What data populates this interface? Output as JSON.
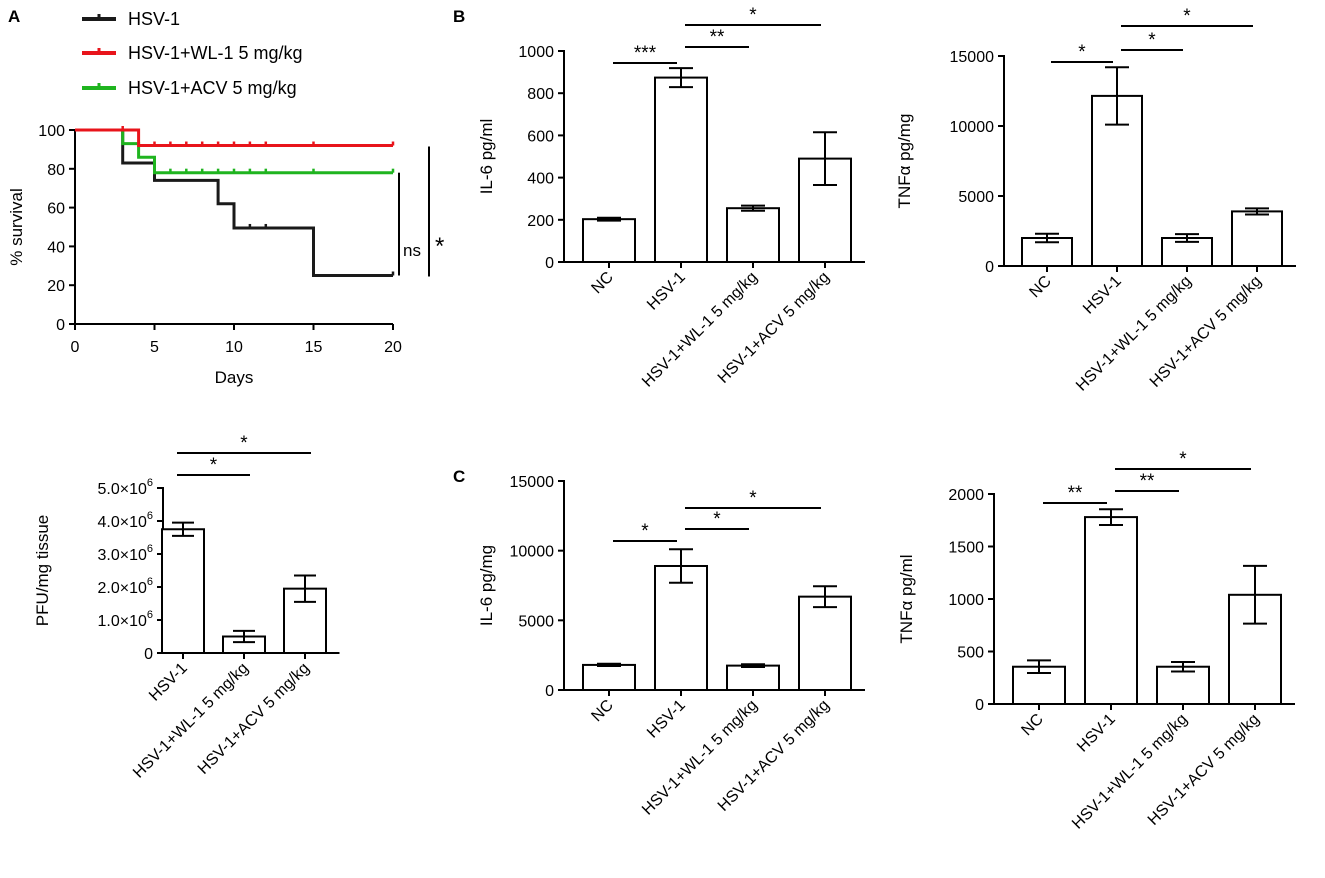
{
  "panel_labels": [
    "A",
    "B",
    "C"
  ],
  "colors": {
    "HSV-1": "#1a1a1a",
    "HSV-1+WL-1 5 mg/kg": "#e8141b",
    "HSV-1+ACV 5 mg/kg": "#1fb41f"
  },
  "chart_data": [
    {
      "id": "survival",
      "type": "line",
      "panel": "A",
      "xlabel": "Days",
      "ylabel": "% survival",
      "xlim": [
        0,
        20
      ],
      "ylim": [
        0,
        100
      ],
      "xticks": [
        0,
        5,
        10,
        15,
        20
      ],
      "yticks": [
        0,
        20,
        40,
        60,
        80,
        100
      ],
      "series": [
        {
          "name": "HSV-1",
          "color": "#1a1a1a",
          "steps": [
            [
              0,
              100
            ],
            [
              3,
              100
            ],
            [
              3,
              83
            ],
            [
              5,
              83
            ],
            [
              5,
              74
            ],
            [
              9,
              74
            ],
            [
              9,
              62
            ],
            [
              10,
              62
            ],
            [
              10,
              49.5
            ],
            [
              15,
              49.5
            ],
            [
              15,
              25
            ],
            [
              20,
              25
            ]
          ],
          "censored": [
            11,
            12,
            20
          ]
        },
        {
          "name": "HSV-1+WL-1 5 mg/kg",
          "color": "#e8141b",
          "steps": [
            [
              0,
              100
            ],
            [
              4,
              100
            ],
            [
              4,
              92
            ],
            [
              20,
              92
            ]
          ],
          "censored": [
            3,
            5,
            6,
            7,
            8,
            9,
            10,
            11,
            12,
            15,
            20
          ]
        },
        {
          "name": "HSV-1+ACV 5 mg/kg",
          "color": "#1fb41f",
          "steps": [
            [
              0,
              100
            ],
            [
              3,
              100
            ],
            [
              3,
              93
            ],
            [
              4,
              93
            ],
            [
              4,
              86
            ],
            [
              5,
              86
            ],
            [
              5,
              78
            ],
            [
              20,
              78
            ]
          ],
          "censored": [
            6,
            7,
            8,
            9,
            10,
            11,
            12,
            15,
            20
          ]
        }
      ],
      "annotations": [
        {
          "text": "ns",
          "span": [
            25,
            78
          ]
        },
        {
          "text": "*",
          "span": [
            25,
            92
          ]
        }
      ]
    },
    {
      "id": "pfu",
      "type": "bar",
      "panel": "A",
      "ylabel": "PFU/mg tissue",
      "ylim": [
        0,
        5000000
      ],
      "yticks": [
        0,
        1000000,
        2000000,
        3000000,
        4000000,
        5000000
      ],
      "ytick_labels": [
        "0",
        "1.0×10",
        "2.0×10",
        "3.0×10",
        "4.0×10",
        "5.0×10"
      ],
      "ytick_exp": "6",
      "categories": [
        "HSV-1",
        "HSV-1+WL-1 5 mg/kg",
        "HSV-1+ACV 5 mg/kg"
      ],
      "values": [
        3750000,
        500000,
        1950000
      ],
      "errors": [
        200000,
        170000,
        400000
      ],
      "significance": [
        {
          "from": 0,
          "to": 1,
          "label": "*"
        },
        {
          "from": 0,
          "to": 2,
          "label": "*"
        }
      ]
    },
    {
      "id": "b-il6",
      "type": "bar",
      "panel": "B",
      "ylabel": "IL-6 pg/ml",
      "ylim": [
        0,
        1000
      ],
      "yticks": [
        0,
        200,
        400,
        600,
        800,
        1000
      ],
      "categories": [
        "NC",
        "HSV-1",
        "HSV-1+WL-1 5 mg/kg",
        "HSV-1+ACV 5 mg/kg"
      ],
      "values": [
        203,
        874,
        255,
        490
      ],
      "errors": [
        7,
        45,
        12,
        125
      ],
      "significance": [
        {
          "from": 0,
          "to": 1,
          "label": "***"
        },
        {
          "from": 1,
          "to": 2,
          "label": "**"
        },
        {
          "from": 1,
          "to": 3,
          "label": "*"
        }
      ]
    },
    {
      "id": "b-tnf",
      "type": "bar",
      "panel": "B",
      "ylabel": "TNFα pg/mg",
      "ylim": [
        0,
        15000
      ],
      "yticks": [
        0,
        5000,
        10000,
        15000
      ],
      "categories": [
        "NC",
        "HSV-1",
        "HSV-1+WL-1 5 mg/kg",
        "HSV-1+ACV 5 mg/kg"
      ],
      "values": [
        2000,
        12150,
        2000,
        3900
      ],
      "errors": [
        300,
        2050,
        280,
        220
      ],
      "significance": [
        {
          "from": 0,
          "to": 1,
          "label": "*"
        },
        {
          "from": 1,
          "to": 2,
          "label": "*"
        },
        {
          "from": 1,
          "to": 3,
          "label": "*"
        }
      ]
    },
    {
      "id": "c-il6",
      "type": "bar",
      "panel": "C",
      "ylabel": "IL-6 pg/mg",
      "ylim": [
        0,
        15000
      ],
      "yticks": [
        0,
        5000,
        10000,
        15000
      ],
      "categories": [
        "NC",
        "HSV-1",
        "HSV-1+WL-1 5 mg/kg",
        "HSV-1+ACV 5 mg/kg"
      ],
      "values": [
        1800,
        8900,
        1750,
        6700
      ],
      "errors": [
        80,
        1200,
        100,
        750
      ],
      "significance": [
        {
          "from": 0,
          "to": 1,
          "label": "*"
        },
        {
          "from": 1,
          "to": 2,
          "label": "*"
        },
        {
          "from": 1,
          "to": 3,
          "label": "*"
        }
      ]
    },
    {
      "id": "c-tnf",
      "type": "bar",
      "panel": "C",
      "ylabel": "TNFα pg/ml",
      "ylim": [
        0,
        2000
      ],
      "yticks": [
        0,
        500,
        1000,
        1500,
        2000
      ],
      "categories": [
        "NC",
        "HSV-1",
        "HSV-1+WL-1 5 mg/kg",
        "HSV-1+ACV 5 mg/kg"
      ],
      "values": [
        355,
        1780,
        355,
        1040
      ],
      "errors": [
        60,
        75,
        45,
        275
      ],
      "significance": [
        {
          "from": 0,
          "to": 1,
          "label": "**"
        },
        {
          "from": 1,
          "to": 2,
          "label": "**"
        },
        {
          "from": 1,
          "to": 3,
          "label": "*"
        }
      ]
    }
  ]
}
